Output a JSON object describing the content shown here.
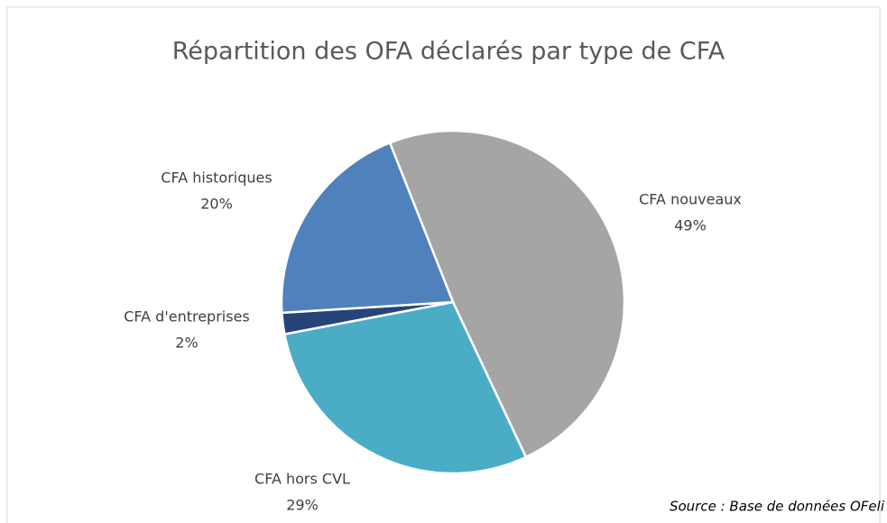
{
  "chart_data": {
    "type": "pie",
    "title": "Répartition des OFA déclarés par type de CFA",
    "categories": [
      "CFA nouveaux",
      "CFA hors CVL",
      "CFA d'entreprises",
      "CFA historiques"
    ],
    "values": [
      49,
      29,
      2,
      20
    ],
    "value_labels": [
      "49%",
      "29%",
      "2%",
      "20%"
    ],
    "colors": [
      "#a5a5a5",
      "#4bacc6",
      "#264478",
      "#4f81bd"
    ],
    "source": "Source : Base de données OFeli"
  }
}
